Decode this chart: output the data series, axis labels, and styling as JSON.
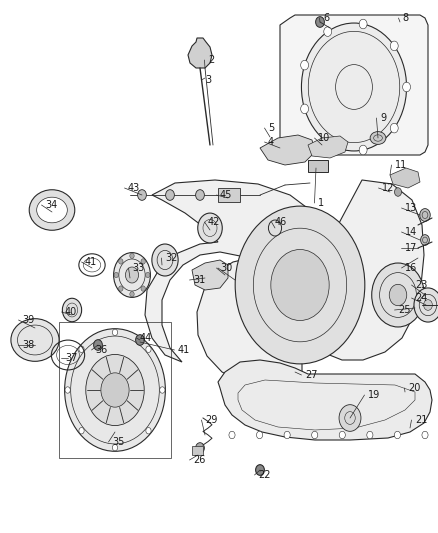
{
  "bg_color": "#ffffff",
  "fig_width": 4.38,
  "fig_height": 5.33,
  "dpi": 100,
  "line_color": "#2a2a2a",
  "label_fontsize": 7,
  "label_color": "#1a1a1a",
  "label_lw": 0.5
}
